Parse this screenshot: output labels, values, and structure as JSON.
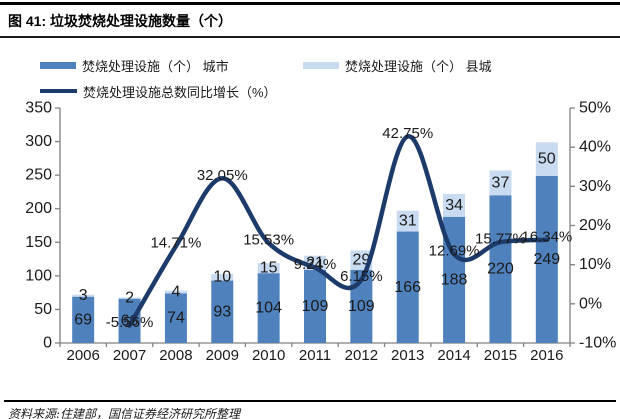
{
  "figure": {
    "title": "图 41: 垃圾焚烧处理设施数量（个）",
    "source": "资料来源:住建部，国信证券经济研究所整理"
  },
  "legend": {
    "city_label": "焚烧处理设施（个） 城市",
    "county_label": "焚烧处理设施（个） 县城",
    "growth_label": "焚烧处理设施总数同比增长（%）"
  },
  "colors": {
    "city_bar": "#4f81bd",
    "county_bar": "#c9dbf0",
    "growth_line": "#1c3b6b",
    "axis": "#808080",
    "label_text": "#1a1a1a"
  },
  "chart_data": {
    "type": "bar",
    "subtype": "stacked-bars-with-line-combo",
    "title": "垃圾焚烧处理设施数量（个）",
    "categories": [
      "2006",
      "2007",
      "2008",
      "2009",
      "2010",
      "2011",
      "2012",
      "2013",
      "2014",
      "2015",
      "2016"
    ],
    "series": [
      {
        "name": "焚烧处理设施（个） 城市",
        "type": "bar",
        "stack": true,
        "axis": "left",
        "values": [
          69,
          66,
          74,
          93,
          104,
          109,
          109,
          166,
          188,
          220,
          249
        ]
      },
      {
        "name": "焚烧处理设施（个） 县城",
        "type": "bar",
        "stack": true,
        "axis": "left",
        "values": [
          3,
          2,
          4,
          10,
          15,
          21,
          29,
          31,
          34,
          37,
          50
        ]
      },
      {
        "name": "焚烧处理设施总数同比增长（%）",
        "type": "line",
        "smooth": true,
        "axis": "right",
        "values": [
          null,
          -5.56,
          14.71,
          32.05,
          15.53,
          9.24,
          6.15,
          42.75,
          12.69,
          15.77,
          16.34
        ],
        "point_labels": [
          null,
          "-5.56%",
          "14.71%",
          "32.05%",
          "15.53%",
          "9.24%",
          "6.15%",
          "42.75%",
          "12.69%",
          "15.77%",
          "16.34%"
        ]
      }
    ],
    "left_axis": {
      "min": 0,
      "max": 350,
      "step": 50,
      "tick_labels": [
        "0",
        "50",
        "100",
        "150",
        "200",
        "250",
        "300",
        "350"
      ]
    },
    "right_axis": {
      "min": -10,
      "max": 50,
      "step": 10,
      "tick_labels": [
        "-10%",
        "0%",
        "10%",
        "20%",
        "30%",
        "40%",
        "50%"
      ]
    },
    "grid": false,
    "legend_position": "top-left",
    "xlabel": "",
    "ylabel": ""
  }
}
